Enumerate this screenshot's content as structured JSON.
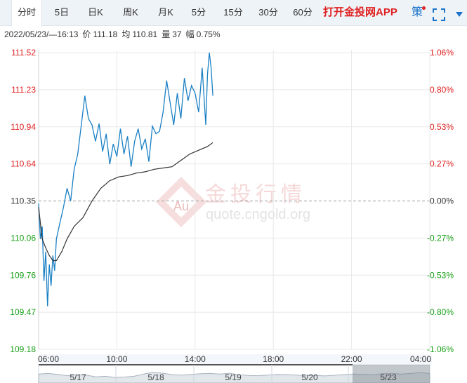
{
  "tabs": [
    {
      "label": "分时",
      "active": true
    },
    {
      "label": "5日"
    },
    {
      "label": "日K"
    },
    {
      "label": "周K"
    },
    {
      "label": "月K"
    },
    {
      "label": "5分"
    },
    {
      "label": "15分"
    },
    {
      "label": "30分"
    },
    {
      "label": "60分"
    }
  ],
  "promo_label": "打开金投网APP",
  "strategy_label": "策",
  "info": {
    "datetime": "2022/05/23/—16:13",
    "price_label": "价",
    "price": "111.18",
    "avg_label": "均",
    "avg": "110.81",
    "vol_label": "量",
    "vol": "37",
    "amp_label": "幅",
    "amp": "0.75%"
  },
  "watermark": {
    "cn": "金投行情",
    "url": "quote.cngold.org",
    "logo": "Au"
  },
  "colors": {
    "up": "#e02020",
    "down": "#18a018",
    "flat": "#333333",
    "price_line": "#1a80c4",
    "avg_line": "#333333",
    "accent": "#1a73c8"
  },
  "chart_data": {
    "type": "line",
    "title": "",
    "ylim": [
      109.18,
      111.52
    ],
    "y_ticks_left": [
      "111.52",
      "111.23",
      "110.94",
      "110.64",
      "110.35",
      "110.06",
      "109.76",
      "109.47",
      "109.18"
    ],
    "y_ticks_right": [
      "1.06%",
      "0.80%",
      "0.53%",
      "0.27%",
      "0.00%",
      "-0.27%",
      "-0.53%",
      "-0.80%",
      "-1.06%"
    ],
    "x_ticks": [
      "06:00",
      "10:00",
      "14:00",
      "18:00",
      "22:00",
      "04:00"
    ],
    "x_range_hours": [
      6,
      28
    ],
    "base_price": 110.35,
    "series": [
      {
        "key": "price",
        "x": [
          6.0,
          6.1,
          6.2,
          6.3,
          6.4,
          6.5,
          6.6,
          6.7,
          6.8,
          6.9,
          7.0,
          7.2,
          7.4,
          7.6,
          7.8,
          8.0,
          8.2,
          8.4,
          8.6,
          8.8,
          9.0,
          9.2,
          9.4,
          9.6,
          9.8,
          10.0,
          10.2,
          10.4,
          10.6,
          10.8,
          11.0,
          11.2,
          11.4,
          11.6,
          11.8,
          12.0,
          12.2,
          12.4,
          12.6,
          12.8,
          13.0,
          13.2,
          13.4,
          13.6,
          13.8,
          14.0,
          14.2,
          14.4,
          14.6,
          14.8,
          15.0,
          15.2,
          15.4,
          15.5,
          15.6,
          15.7,
          15.8
        ],
        "values": [
          110.33,
          110.05,
          110.15,
          109.72,
          109.95,
          109.52,
          109.85,
          109.68,
          109.92,
          109.8,
          110.05,
          110.18,
          110.3,
          110.45,
          110.35,
          110.6,
          110.72,
          110.95,
          111.18,
          111.0,
          110.95,
          110.82,
          110.96,
          110.74,
          110.88,
          110.64,
          110.8,
          110.7,
          110.92,
          110.72,
          110.86,
          110.62,
          110.82,
          110.92,
          110.76,
          110.84,
          110.66,
          110.94,
          110.88,
          110.9,
          111.05,
          111.3,
          111.12,
          110.95,
          111.2,
          111.0,
          111.32,
          111.14,
          111.26,
          111.2,
          111.05,
          111.4,
          110.95,
          111.35,
          111.52,
          111.4,
          111.18
        ]
      },
      {
        "key": "average",
        "x": [
          6.0,
          6.2,
          6.4,
          6.6,
          6.8,
          7.0,
          7.3,
          7.6,
          8.0,
          8.5,
          9.0,
          9.5,
          10.0,
          10.5,
          11.0,
          11.5,
          12.0,
          12.5,
          13.0,
          13.5,
          14.0,
          14.5,
          15.0,
          15.5,
          15.8
        ],
        "values": [
          110.3,
          110.05,
          109.98,
          109.92,
          109.88,
          109.88,
          109.95,
          110.05,
          110.15,
          110.22,
          110.35,
          110.45,
          110.51,
          110.54,
          110.55,
          110.57,
          110.58,
          110.6,
          110.61,
          110.62,
          110.67,
          110.72,
          110.75,
          110.78,
          110.81
        ]
      }
    ]
  },
  "navigator": {
    "days": [
      "5/17",
      "5/18",
      "5/19",
      "5/20",
      "5/23"
    ],
    "profile": [
      0.55,
      0.6,
      0.52,
      0.4,
      0.48,
      0.45,
      0.3,
      0.35,
      0.25,
      0.28,
      0.35,
      0.55,
      0.7,
      0.62,
      0.5,
      0.45,
      0.52,
      0.58,
      0.6,
      0.55,
      0.62,
      0.48,
      0.42,
      0.4,
      0.45,
      0.52,
      0.5,
      0.46,
      0.4,
      0.42,
      0.38,
      0.44,
      0.5,
      0.55,
      0.52,
      0.48,
      0.58,
      0.62,
      0.55,
      0.6,
      0.68,
      0.6
    ]
  }
}
